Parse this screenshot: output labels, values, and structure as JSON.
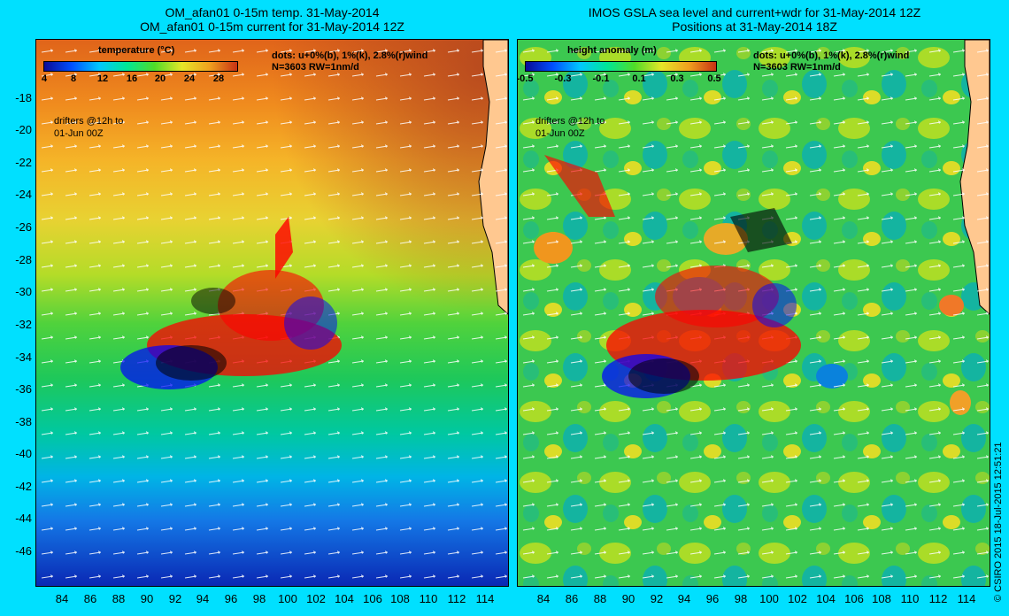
{
  "left_panel": {
    "title_line1": "OM_afan01 0-15m temp. 31-May-2014",
    "title_line2": "OM_afan01 0-15m current for 31-May-2014 12Z",
    "colorbar_label": "temperature (°C)",
    "colorbar_ticks": [
      "4",
      "8",
      "12",
      "16",
      "20",
      "24",
      "28"
    ],
    "info_line1": "dots: u+0%(b), 1%(k), 2.8%(r)wind",
    "info_line2": "N=3603 RW=1nm/d",
    "drifters_line1": "drifters @12h to",
    "drifters_line2": "01-Jun 00Z"
  },
  "right_panel": {
    "title_line1": "IMOS GSLA sea level and current+wdr for 31-May-2014 12Z",
    "title_line2": "Positions at 31-May-2014 18Z",
    "colorbar_label": "height anomaly  (m)",
    "colorbar_ticks": [
      "-0.5",
      "-0.3",
      "-0.1",
      "0.1",
      "0.3",
      "0.5"
    ],
    "info_line1": "dots: u+0%(b), 1%(k), 2.8%(r)wind",
    "info_line2": "N=3603 RW=1nm/d",
    "drifters_line1": "drifters @12h to",
    "drifters_line2": "01-Jun 00Z"
  },
  "y_ticks": [
    "-18",
    "-20",
    "-22",
    "-24",
    "-26",
    "-28",
    "-30",
    "-32",
    "-34",
    "-36",
    "-38",
    "-40",
    "-42",
    "-44",
    "-46"
  ],
  "x_ticks": [
    "84",
    "86",
    "88",
    "90",
    "92",
    "94",
    "96",
    "98",
    "100",
    "102",
    "104",
    "106",
    "108",
    "110",
    "112",
    "114"
  ],
  "credit": "© CSIRO 2015   18-Jul-2015 12:51:21",
  "colors": {
    "background": "#00e0ff",
    "land": "#ffc890",
    "drifter_blue": "#0000ff",
    "drifter_black": "#000000",
    "drifter_red": "#ff0000",
    "magenta": "#ff00ff"
  }
}
